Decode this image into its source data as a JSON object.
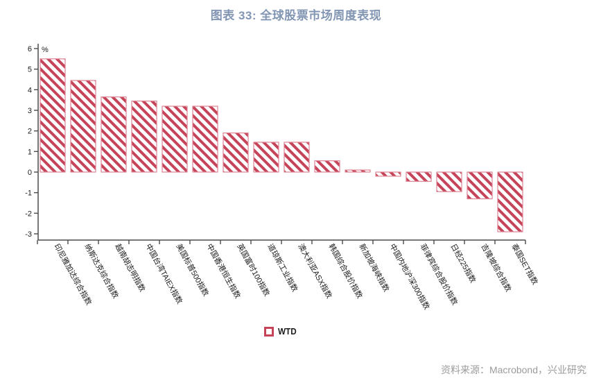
{
  "title": "图表 33: 全球股票市场周度表现",
  "source_note": "资料来源：Macrobond，兴业研究",
  "legend": {
    "entries": [
      "WTD"
    ]
  },
  "colors": {
    "title": "#8296B4",
    "bar_stripe": "#C6445A",
    "bar_border": "#DD8492",
    "axis": "#4a4a4a",
    "tick_text": "#1a1a1a",
    "source_text": "#9B9B9B"
  },
  "chart_data": {
    "type": "bar",
    "title": "图表 33: 全球股票市场周度表现",
    "xlabel": "",
    "ylabel": "%",
    "ylim": [
      -3,
      6
    ],
    "yticks": [
      -3,
      -2,
      -1,
      0,
      1,
      2,
      3,
      4,
      5,
      6
    ],
    "grid": false,
    "legend_position": "bottom",
    "series_name": "WTD",
    "categories": [
      "印尼雅加达综合指数",
      "纳斯达克综合指数",
      "越南胡志明指数",
      "中国台湾TAIEX指数",
      "美国标普500指数",
      "中国香港恒生指数",
      "英国富时100指数",
      "道琼斯工业指数",
      "澳大利亚ASX指数",
      "韩国综合股价指数",
      "新加坡海峡指数",
      "中国内地沪深300指数",
      "菲律宾综合股价指数",
      "日经225指数",
      "吉隆坡综合指数",
      "泰国SET指数"
    ],
    "values": [
      5.5,
      4.45,
      3.65,
      3.45,
      3.2,
      3.2,
      1.9,
      1.45,
      1.45,
      0.55,
      0.1,
      -0.2,
      -0.45,
      -0.95,
      -1.3,
      -2.9
    ]
  }
}
